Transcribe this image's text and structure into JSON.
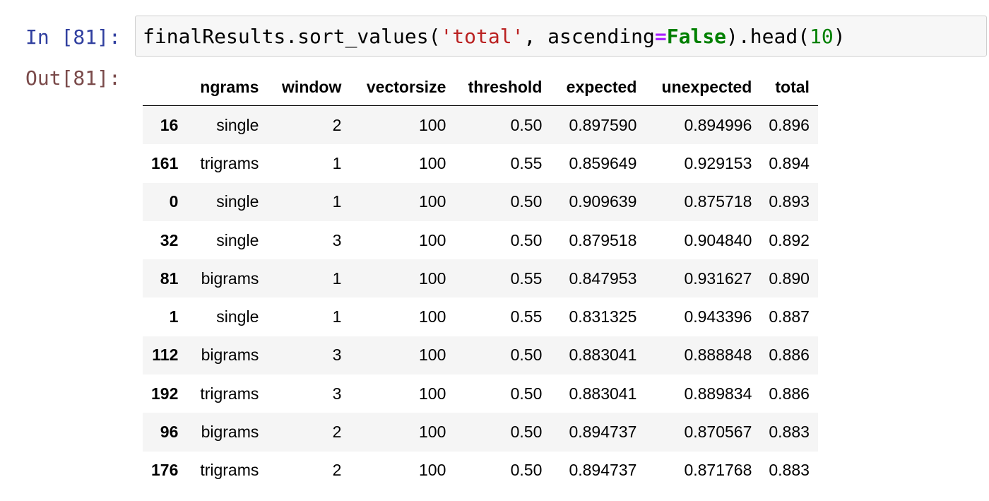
{
  "cell": {
    "in_prompt": "In [81]:",
    "out_prompt": "Out[81]:",
    "code": {
      "object": "finalResults.sort_values(",
      "arg_string": "'total'",
      "sep": ", ascending",
      "equals": "=",
      "keyword": "False",
      "chain": ").head(",
      "number": "10",
      "close": ")"
    }
  },
  "table": {
    "columns": [
      "",
      "ngrams",
      "window",
      "vectorsize",
      "threshold",
      "expected",
      "unexpected",
      "total"
    ],
    "rows": [
      {
        "index": "16",
        "ngrams": "single",
        "window": "2",
        "vectorsize": "100",
        "threshold": "0.50",
        "expected": "0.897590",
        "unexpected": "0.894996",
        "total": "0.896"
      },
      {
        "index": "161",
        "ngrams": "trigrams",
        "window": "1",
        "vectorsize": "100",
        "threshold": "0.55",
        "expected": "0.859649",
        "unexpected": "0.929153",
        "total": "0.894"
      },
      {
        "index": "0",
        "ngrams": "single",
        "window": "1",
        "vectorsize": "100",
        "threshold": "0.50",
        "expected": "0.909639",
        "unexpected": "0.875718",
        "total": "0.893"
      },
      {
        "index": "32",
        "ngrams": "single",
        "window": "3",
        "vectorsize": "100",
        "threshold": "0.50",
        "expected": "0.879518",
        "unexpected": "0.904840",
        "total": "0.892"
      },
      {
        "index": "81",
        "ngrams": "bigrams",
        "window": "1",
        "vectorsize": "100",
        "threshold": "0.55",
        "expected": "0.847953",
        "unexpected": "0.931627",
        "total": "0.890"
      },
      {
        "index": "1",
        "ngrams": "single",
        "window": "1",
        "vectorsize": "100",
        "threshold": "0.55",
        "expected": "0.831325",
        "unexpected": "0.943396",
        "total": "0.887"
      },
      {
        "index": "112",
        "ngrams": "bigrams",
        "window": "3",
        "vectorsize": "100",
        "threshold": "0.50",
        "expected": "0.883041",
        "unexpected": "0.888848",
        "total": "0.886"
      },
      {
        "index": "192",
        "ngrams": "trigrams",
        "window": "3",
        "vectorsize": "100",
        "threshold": "0.50",
        "expected": "0.883041",
        "unexpected": "0.889834",
        "total": "0.886"
      },
      {
        "index": "96",
        "ngrams": "bigrams",
        "window": "2",
        "vectorsize": "100",
        "threshold": "0.50",
        "expected": "0.894737",
        "unexpected": "0.870567",
        "total": "0.883"
      },
      {
        "index": "176",
        "ngrams": "trigrams",
        "window": "2",
        "vectorsize": "100",
        "threshold": "0.50",
        "expected": "0.894737",
        "unexpected": "0.871768",
        "total": "0.883"
      }
    ]
  }
}
